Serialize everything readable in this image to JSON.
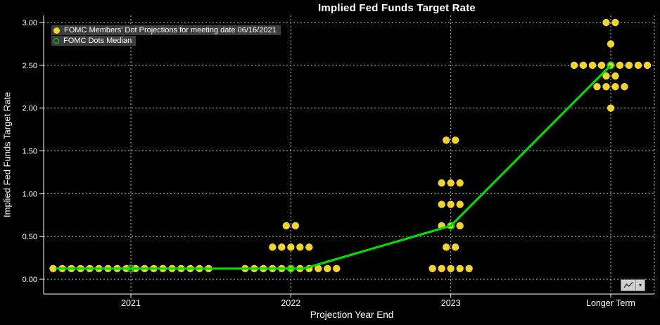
{
  "chart_data": {
    "type": "scatter",
    "title": "Implied Fed Funds Target Rate",
    "xlabel": "Projection Year End",
    "ylabel": "Implied Fed Funds Target Rate",
    "ylim": [
      0.0,
      3.0
    ],
    "ytick_values": [
      0.0,
      0.5,
      1.0,
      1.5,
      2.0,
      2.5,
      3.0
    ],
    "ytick_labels": [
      "0.00",
      "0.50",
      "1.00",
      "1.50",
      "2.00",
      "2.50",
      "3.00"
    ],
    "categories": [
      "2021",
      "2022",
      "2023",
      "Longer Term"
    ],
    "grid": "dashed",
    "legend_position": "top-left",
    "colors": {
      "background": "#000000",
      "dots": "#f3d42c",
      "median": "#00dc00",
      "grid": "#ffffff",
      "text": "#ffffff"
    },
    "series": [
      {
        "name": "FOMC Members' Dot Projections for meeting date 06/16/2021",
        "type": "scatter",
        "color": "#f3d42c",
        "points": [
          {
            "category": "2021",
            "rate": 0.125,
            "count": 18
          },
          {
            "category": "2022",
            "rate": 0.125,
            "count": 11
          },
          {
            "category": "2022",
            "rate": 0.375,
            "count": 5
          },
          {
            "category": "2022",
            "rate": 0.625,
            "count": 2
          },
          {
            "category": "2023",
            "rate": 0.125,
            "count": 5
          },
          {
            "category": "2023",
            "rate": 0.375,
            "count": 2
          },
          {
            "category": "2023",
            "rate": 0.625,
            "count": 3
          },
          {
            "category": "2023",
            "rate": 0.875,
            "count": 3
          },
          {
            "category": "2023",
            "rate": 1.125,
            "count": 3
          },
          {
            "category": "2023",
            "rate": 1.625,
            "count": 2
          },
          {
            "category": "Longer Term",
            "rate": 2.0,
            "count": 1
          },
          {
            "category": "Longer Term",
            "rate": 2.25,
            "count": 4
          },
          {
            "category": "Longer Term",
            "rate": 2.375,
            "count": 2
          },
          {
            "category": "Longer Term",
            "rate": 2.5,
            "count": 9
          },
          {
            "category": "Longer Term",
            "rate": 2.75,
            "count": 1
          },
          {
            "category": "Longer Term",
            "rate": 3.0,
            "count": 2
          }
        ]
      },
      {
        "name": "FOMC Dots Median",
        "type": "line",
        "color": "#00dc00",
        "points": [
          {
            "category": "2021",
            "rate": 0.125
          },
          {
            "category": "2022",
            "rate": 0.125
          },
          {
            "category": "2023",
            "rate": 0.625
          },
          {
            "category": "Longer Term",
            "rate": 2.5
          }
        ]
      }
    ]
  },
  "icons": {
    "chart_tools": "line-chart-icon",
    "dropdown_glyph": "▾"
  }
}
